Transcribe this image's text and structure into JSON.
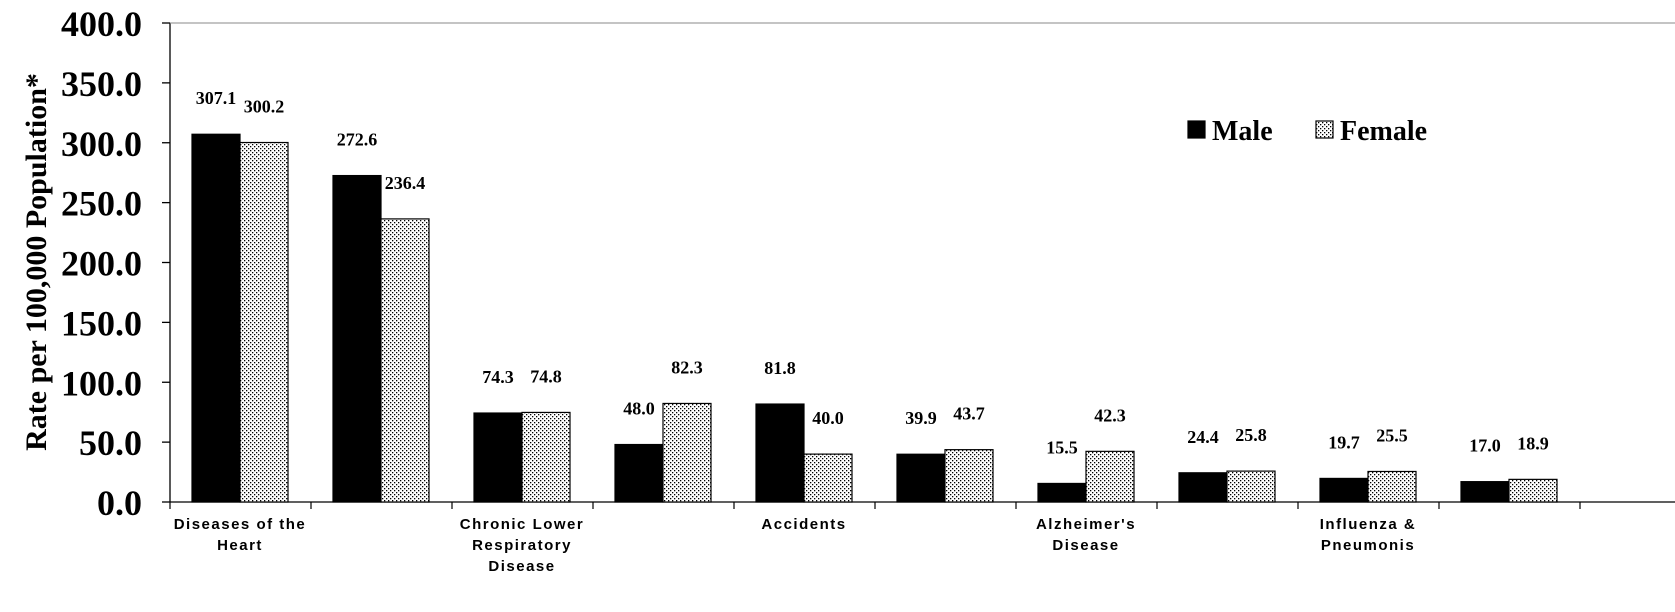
{
  "chart_data": {
    "type": "bar",
    "ylabel": "Rate per 100,000 Population*",
    "ylim": [
      0,
      400
    ],
    "yticks": [
      "0.0",
      "50.0",
      "100.0",
      "150.0",
      "200.0",
      "250.0",
      "300.0",
      "350.0",
      "400.0"
    ],
    "categories": [
      "Diseases of the Heart",
      "",
      "Chronic Lower Respiratory Disease",
      "",
      "Accidents",
      "",
      "Alzheimer's Disease",
      "",
      "Influenza & Pneumonis",
      ""
    ],
    "category_lines": [
      [
        "Diseases of the",
        "Heart"
      ],
      [],
      [
        "Chronic Lower",
        "Respiratory",
        "Disease"
      ],
      [],
      [
        "Accidents"
      ],
      [],
      [
        "Alzheimer's",
        "Disease"
      ],
      [],
      [
        "Influenza &",
        "Pneumonis"
      ],
      []
    ],
    "series": [
      {
        "name": "Male",
        "color": "#000000",
        "values": [
          307.1,
          272.6,
          74.3,
          48.0,
          81.8,
          39.9,
          15.5,
          24.4,
          19.7,
          17.0
        ],
        "labels": [
          "307.1",
          "272.6",
          "74.3",
          "48.0",
          "81.8",
          "39.9",
          "15.5",
          "24.4",
          "19.7",
          "17.0"
        ]
      },
      {
        "name": "Female",
        "color": "#ffffff",
        "pattern": "dotted",
        "values": [
          300.2,
          236.4,
          74.8,
          82.3,
          40.0,
          43.7,
          42.3,
          25.8,
          25.5,
          18.9
        ],
        "labels": [
          "300.2",
          "236.4",
          "74.8",
          "82.3",
          "40.0",
          "43.7",
          "42.3",
          "25.8",
          "25.5",
          "18.9"
        ]
      }
    ],
    "legend": "top-right",
    "grid": false
  }
}
